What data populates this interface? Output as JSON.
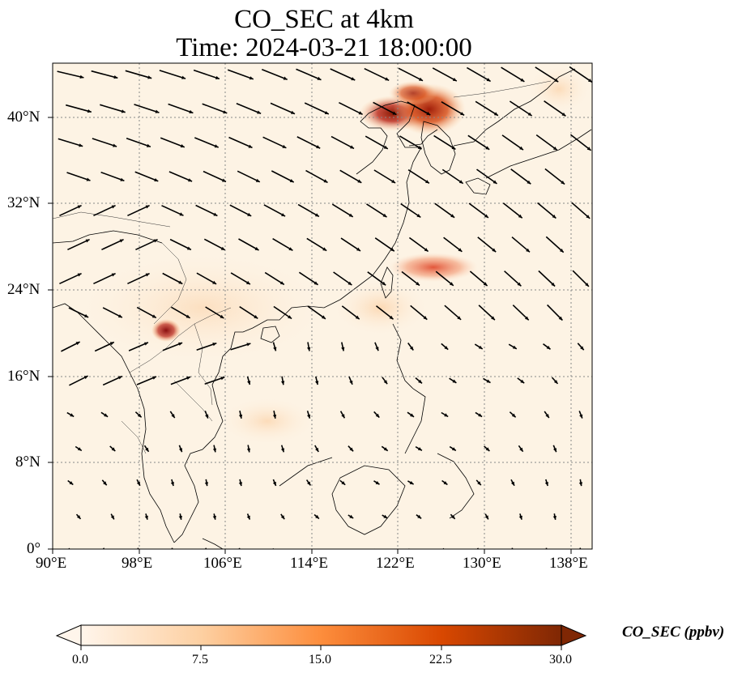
{
  "title": "CO_SEC at 4km",
  "subtitle": "Time: 2024-03-21 18:00:00",
  "map": {
    "lon_range": [
      90,
      140
    ],
    "lat_range": [
      0,
      45
    ],
    "lon_ticks": [
      "90°E",
      "98°E",
      "106°E",
      "114°E",
      "122°E",
      "130°E",
      "138°E"
    ],
    "lat_ticks": [
      "0°",
      "8°N",
      "16°N",
      "24°N",
      "32°N",
      "40°N"
    ],
    "gridlines": true,
    "features": [
      "coastlines",
      "borders",
      "wind-vectors",
      "concentration-field"
    ]
  },
  "colorbar": {
    "label": "CO_SEC (ppbv)",
    "ticks": [
      "0.0",
      "7.5",
      "15.0",
      "22.5",
      "30.0"
    ],
    "min": 0,
    "max": 30,
    "cmap": [
      "#fff5eb",
      "#fdd0a2",
      "#fd8d3c",
      "#d94801",
      "#7f2704"
    ],
    "extend": "both"
  },
  "colors": {
    "background": "#fdf3e4",
    "grid": "#888888",
    "coast": "#000000",
    "arrow": "#000000"
  }
}
